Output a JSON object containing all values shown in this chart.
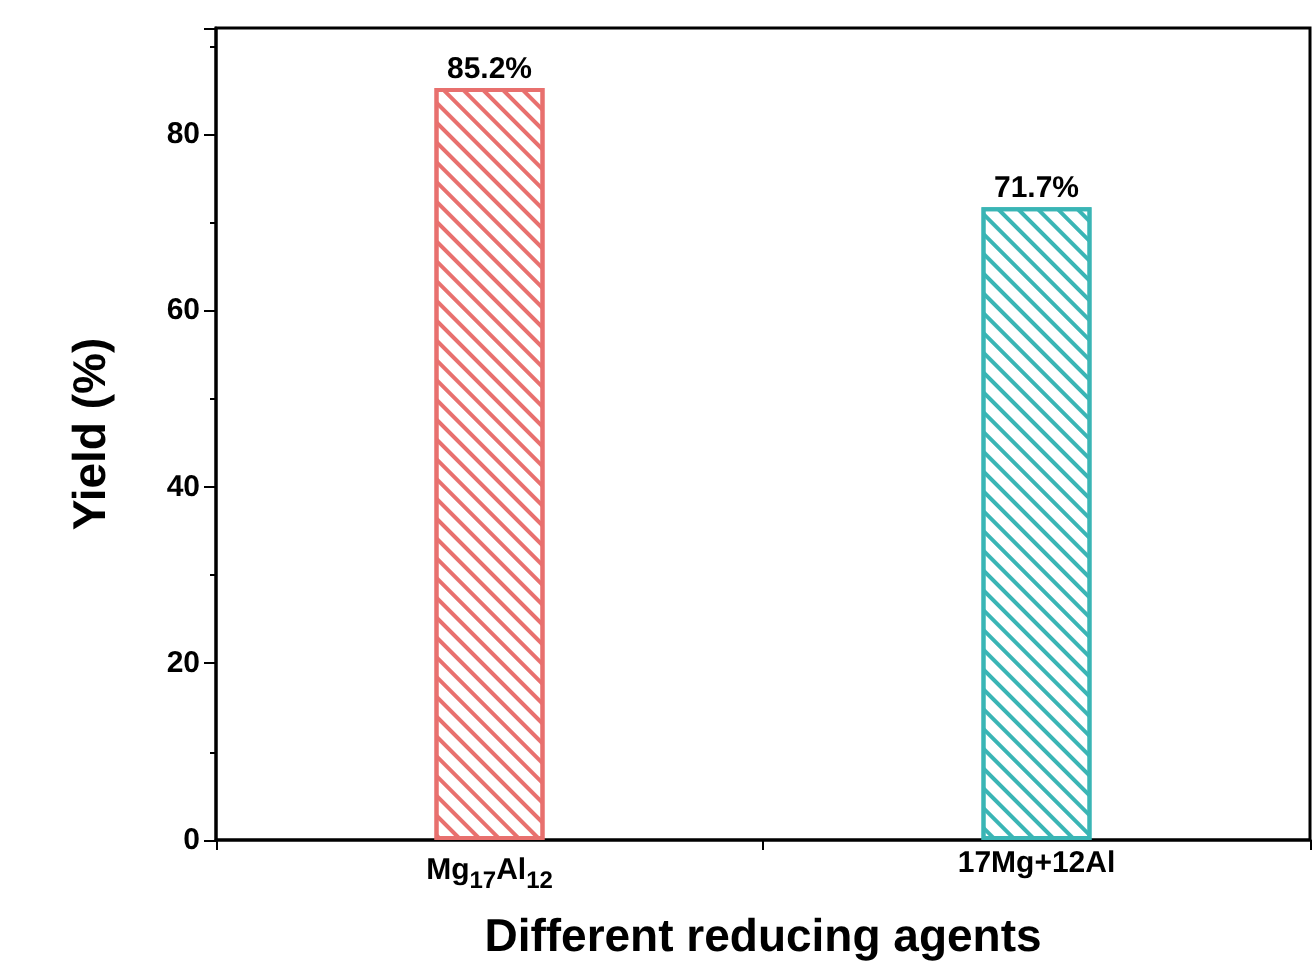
{
  "chart_data": {
    "type": "bar",
    "xlabel": "Different reducing agents",
    "ylabel": "Yield (%)",
    "categories": [
      "Mg$_{17}$Al$_{12}$",
      "17Mg+12Al"
    ],
    "values": [
      85.2,
      71.7
    ],
    "colors": [
      "#e8706e",
      "#3ab5b5"
    ],
    "value_labels": [
      "85.2%",
      "71.7%"
    ],
    "ylim": [
      0,
      92
    ],
    "yticks": [
      0,
      20,
      40,
      60,
      80
    ]
  }
}
